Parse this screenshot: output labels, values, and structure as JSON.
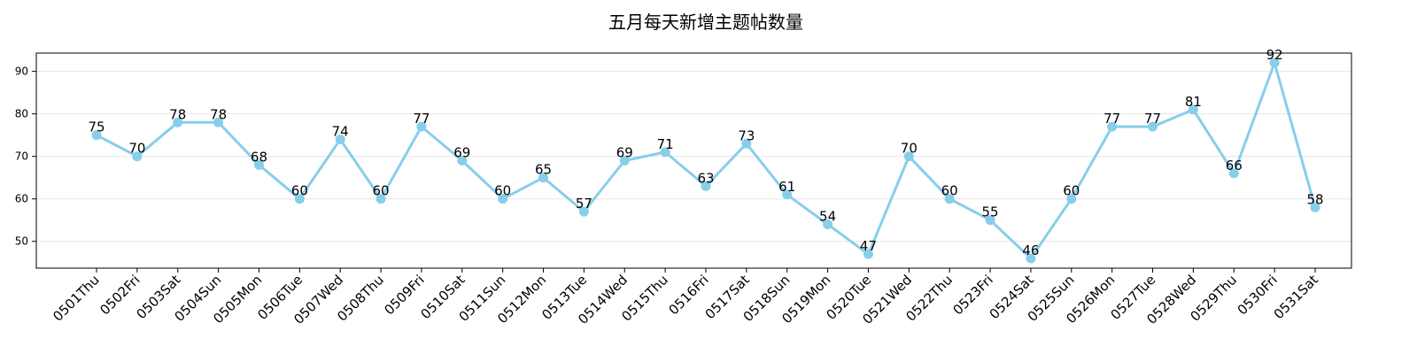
{
  "chart_data": {
    "type": "line",
    "title": "五月每天新增主题帖数量",
    "xlabel": "",
    "ylabel": "",
    "categories": [
      "0501Thu",
      "0502Fri",
      "0503Sat",
      "0504Sun",
      "0505Mon",
      "0506Tue",
      "0507Wed",
      "0508Thu",
      "0509Fri",
      "0510Sat",
      "0511Sun",
      "0512Mon",
      "0513Tue",
      "0514Wed",
      "0515Thu",
      "0516Fri",
      "0517Sat",
      "0518Sun",
      "0519Mon",
      "0520Tue",
      "0521Wed",
      "0522Thu",
      "0523Fri",
      "0524Sat",
      "0525Sun",
      "0526Mon",
      "0527Tue",
      "0528Wed",
      "0529Thu",
      "0530Fri",
      "0531Sat"
    ],
    "values": [
      75,
      70,
      78,
      78,
      68,
      60,
      74,
      60,
      77,
      69,
      60,
      65,
      57,
      69,
      71,
      63,
      73,
      61,
      54,
      47,
      70,
      60,
      55,
      46,
      60,
      77,
      77,
      81,
      66,
      92,
      58
    ],
    "ylim": [
      43.7,
      94.3
    ],
    "yticks": [
      50,
      60,
      70,
      80,
      90
    ],
    "grid": "horizontal",
    "line_color": "#87CEEB",
    "data_labels": true,
    "x_tick_rotation": -45
  }
}
